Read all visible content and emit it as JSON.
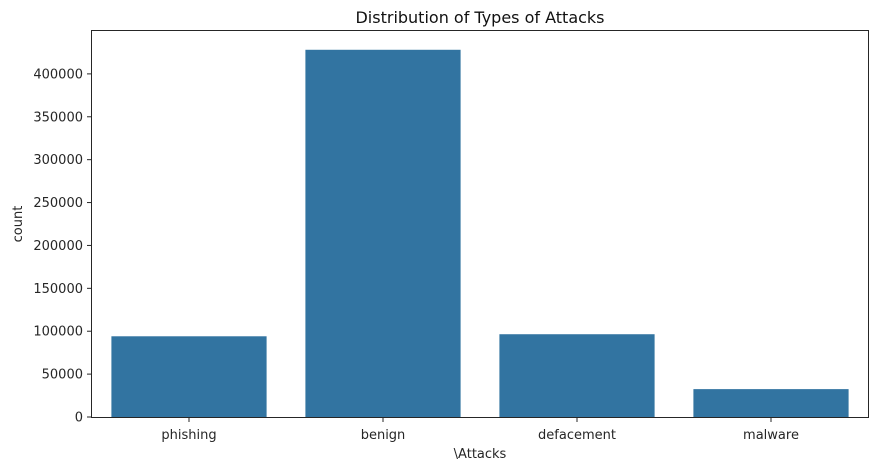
{
  "chart_data": {
    "type": "bar",
    "title": "Distribution of Types of Attacks",
    "xlabel": "\\Attacks",
    "ylabel": "count",
    "categories": [
      "phishing",
      "benign",
      "defacement",
      "malware"
    ],
    "values": [
      94100,
      428100,
      96500,
      32500
    ],
    "ylim": [
      0,
      450000
    ],
    "yticks": [
      0,
      50000,
      100000,
      150000,
      200000,
      250000,
      300000,
      350000,
      400000
    ],
    "ytick_labels": [
      "0",
      "50000",
      "100000",
      "150000",
      "200000",
      "250000",
      "300000",
      "350000",
      "400000"
    ],
    "bar_color": "#3274a1",
    "grid": false,
    "legend": "none"
  }
}
